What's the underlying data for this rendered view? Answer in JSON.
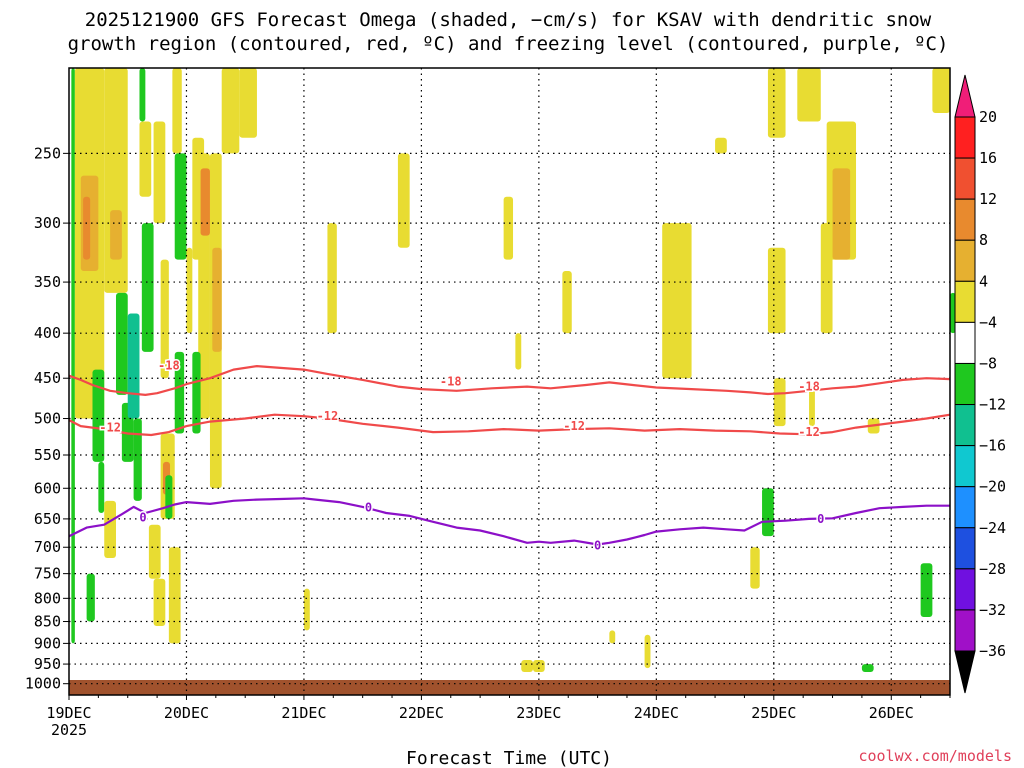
{
  "chart_data": {
    "type": "heatmap",
    "title": "2025121900 GFS Forecast Omega (shaded, −cm/s) for KSAV with dendritic snow",
    "subtitle": "growth region (contoured, red, ºC) and freezing level (contoured, purple, ºC)",
    "xlabel": "Forecast Time (UTC)",
    "ylabel": "",
    "credit": "coolwx.com/models",
    "x_ticks": [
      {
        "day": 0,
        "label": "19DEC",
        "sub": "2025"
      },
      {
        "day": 1,
        "label": "20DEC",
        "sub": ""
      },
      {
        "day": 2,
        "label": "21DEC",
        "sub": ""
      },
      {
        "day": 3,
        "label": "22DEC",
        "sub": ""
      },
      {
        "day": 4,
        "label": "23DEC",
        "sub": ""
      },
      {
        "day": 5,
        "label": "24DEC",
        "sub": ""
      },
      {
        "day": 6,
        "label": "25DEC",
        "sub": ""
      },
      {
        "day": 7,
        "label": "26DEC",
        "sub": ""
      }
    ],
    "x_range_days": [
      0,
      7.5
    ],
    "y_ticks_hpa": [
      250,
      300,
      350,
      400,
      450,
      500,
      550,
      600,
      650,
      700,
      750,
      800,
      850,
      900,
      950,
      1000
    ],
    "y_range_hpa": [
      200,
      1030
    ],
    "y_scale": "log-pressure",
    "grid": true,
    "colorbar": {
      "levels": [
        "20",
        "16",
        "12",
        "8",
        "4",
        "−4",
        "−8",
        "−12",
        "−16",
        "−20",
        "−24",
        "−28",
        "−32",
        "−36"
      ],
      "colors": [
        "#ff2020",
        "#f05030",
        "#e88a2e",
        "#e6b030",
        "#e8dc32",
        "#ffffff",
        "#1fc81f",
        "#10c090",
        "#10c8d0",
        "#1e90ff",
        "#1e50e0",
        "#7010e0",
        "#a010c8",
        "#a0a0a0"
      ],
      "top_color": "#f01e78",
      "bottom_color": "#000000"
    },
    "contours": [
      {
        "name": "-18",
        "color": "#f04a4a",
        "points": [
          [
            0,
            447
          ],
          [
            0.1,
            452
          ],
          [
            0.2,
            458
          ],
          [
            0.35,
            465
          ],
          [
            0.5,
            468
          ],
          [
            0.65,
            470
          ],
          [
            0.75,
            468
          ],
          [
            0.9,
            462
          ],
          [
            1.0,
            457
          ],
          [
            1.2,
            450
          ],
          [
            1.4,
            440
          ],
          [
            1.6,
            436
          ],
          [
            1.8,
            438
          ],
          [
            2.0,
            440
          ],
          [
            2.2,
            445
          ],
          [
            2.5,
            452
          ],
          [
            2.8,
            460
          ],
          [
            3.0,
            463
          ],
          [
            3.3,
            465
          ],
          [
            3.6,
            462
          ],
          [
            3.9,
            460
          ],
          [
            4.1,
            462
          ],
          [
            4.4,
            458
          ],
          [
            4.6,
            455
          ],
          [
            4.8,
            458
          ],
          [
            5.0,
            461
          ],
          [
            5.3,
            463
          ],
          [
            5.6,
            465
          ],
          [
            5.8,
            467
          ],
          [
            5.95,
            469
          ],
          [
            6.1,
            468
          ],
          [
            6.3,
            465
          ],
          [
            6.5,
            462
          ],
          [
            6.7,
            460
          ],
          [
            6.9,
            456
          ],
          [
            7.1,
            452
          ],
          [
            7.3,
            450
          ],
          [
            7.5,
            451
          ]
        ],
        "labels": [
          [
            0.85,
            435
          ],
          [
            3.25,
            454
          ],
          [
            6.3,
            460
          ]
        ]
      },
      {
        "name": "-12",
        "color": "#f04a4a",
        "points": [
          [
            0,
            502
          ],
          [
            0.1,
            510
          ],
          [
            0.3,
            514
          ],
          [
            0.5,
            520
          ],
          [
            0.7,
            522
          ],
          [
            0.85,
            518
          ],
          [
            1.0,
            510
          ],
          [
            1.2,
            504
          ],
          [
            1.5,
            500
          ],
          [
            1.75,
            495
          ],
          [
            2.0,
            497
          ],
          [
            2.2,
            500
          ],
          [
            2.5,
            507
          ],
          [
            2.8,
            512
          ],
          [
            3.1,
            518
          ],
          [
            3.4,
            517
          ],
          [
            3.7,
            514
          ],
          [
            4.0,
            516
          ],
          [
            4.3,
            514
          ],
          [
            4.6,
            513
          ],
          [
            4.9,
            516
          ],
          [
            5.2,
            514
          ],
          [
            5.5,
            516
          ],
          [
            5.8,
            517
          ],
          [
            6.05,
            520
          ],
          [
            6.3,
            521
          ],
          [
            6.5,
            518
          ],
          [
            6.7,
            512
          ],
          [
            6.9,
            508
          ],
          [
            7.1,
            504
          ],
          [
            7.3,
            500
          ],
          [
            7.5,
            495
          ]
        ],
        "labels": [
          [
            0.35,
            512
          ],
          [
            2.2,
            497
          ],
          [
            4.3,
            510
          ],
          [
            6.3,
            518
          ]
        ]
      },
      {
        "name": "0",
        "color": "#8c10c8",
        "points": [
          [
            0,
            680
          ],
          [
            0.15,
            665
          ],
          [
            0.3,
            660
          ],
          [
            0.45,
            642
          ],
          [
            0.55,
            630
          ],
          [
            0.65,
            640
          ],
          [
            0.8,
            632
          ],
          [
            0.9,
            626
          ],
          [
            1.0,
            622
          ],
          [
            1.2,
            625
          ],
          [
            1.4,
            620
          ],
          [
            1.6,
            618
          ],
          [
            1.8,
            617
          ],
          [
            2.0,
            616
          ],
          [
            2.1,
            618
          ],
          [
            2.3,
            622
          ],
          [
            2.5,
            630
          ],
          [
            2.7,
            640
          ],
          [
            2.9,
            645
          ],
          [
            3.1,
            655
          ],
          [
            3.3,
            665
          ],
          [
            3.5,
            670
          ],
          [
            3.7,
            680
          ],
          [
            3.9,
            692
          ],
          [
            4.0,
            690
          ],
          [
            4.1,
            692
          ],
          [
            4.3,
            688
          ],
          [
            4.5,
            695
          ],
          [
            4.6,
            692
          ],
          [
            4.75,
            686
          ],
          [
            4.9,
            678
          ],
          [
            5.0,
            672
          ],
          [
            5.2,
            668
          ],
          [
            5.4,
            665
          ],
          [
            5.6,
            668
          ],
          [
            5.75,
            670
          ],
          [
            5.9,
            655
          ],
          [
            6.1,
            653
          ],
          [
            6.3,
            650
          ],
          [
            6.5,
            649
          ],
          [
            6.7,
            640
          ],
          [
            6.9,
            632
          ],
          [
            7.1,
            630
          ],
          [
            7.3,
            628
          ],
          [
            7.5,
            628
          ]
        ],
        "labels": [
          [
            0.63,
            648
          ],
          [
            2.55,
            631
          ],
          [
            4.5,
            697
          ],
          [
            6.4,
            650
          ]
        ]
      }
    ],
    "shaded_cells": [
      {
        "day0": 0.02,
        "day1": 0.05,
        "p0": 200,
        "p1": 900,
        "value": -6
      },
      {
        "day0": 0.05,
        "day1": 0.3,
        "p0": 200,
        "p1": 500,
        "value": 6
      },
      {
        "day0": 0.1,
        "day1": 0.25,
        "p0": 265,
        "p1": 340,
        "value": 10
      },
      {
        "day0": 0.12,
        "day1": 0.18,
        "p0": 280,
        "p1": 330,
        "value": 14
      },
      {
        "day0": 0.3,
        "day1": 0.5,
        "p0": 200,
        "p1": 360,
        "value": 6
      },
      {
        "day0": 0.35,
        "day1": 0.45,
        "p0": 290,
        "p1": 330,
        "value": 10
      },
      {
        "day0": 0.2,
        "day1": 0.3,
        "p0": 440,
        "p1": 560,
        "value": -6
      },
      {
        "day0": 0.25,
        "day1": 0.3,
        "p0": 560,
        "p1": 640,
        "value": -6
      },
      {
        "day0": 0.15,
        "day1": 0.22,
        "p0": 750,
        "p1": 850,
        "value": -6
      },
      {
        "day0": 0.4,
        "day1": 0.5,
        "p0": 360,
        "p1": 470,
        "value": -6
      },
      {
        "day0": 0.45,
        "day1": 0.55,
        "p0": 480,
        "p1": 560,
        "value": -6
      },
      {
        "day0": 0.5,
        "day1": 0.6,
        "p0": 380,
        "p1": 500,
        "value": -10
      },
      {
        "day0": 0.55,
        "day1": 0.62,
        "p0": 500,
        "p1": 620,
        "value": -6
      },
      {
        "day0": 0.6,
        "day1": 0.7,
        "p0": 230,
        "p1": 280,
        "value": 6
      },
      {
        "day0": 0.62,
        "day1": 0.72,
        "p0": 300,
        "p1": 420,
        "value": -6
      },
      {
        "day0": 0.72,
        "day1": 0.82,
        "p0": 230,
        "p1": 300,
        "value": 6
      },
      {
        "day0": 0.78,
        "day1": 0.85,
        "p0": 330,
        "p1": 450,
        "value": 6
      },
      {
        "day0": 0.68,
        "day1": 0.78,
        "p0": 660,
        "p1": 760,
        "value": 6
      },
      {
        "day0": 0.72,
        "day1": 0.82,
        "p0": 760,
        "p1": 860,
        "value": 6
      },
      {
        "day0": 0.78,
        "day1": 0.9,
        "p0": 520,
        "p1": 650,
        "value": 6
      },
      {
        "day0": 0.8,
        "day1": 0.86,
        "p0": 560,
        "p1": 610,
        "value": 14
      },
      {
        "day0": 0.88,
        "day1": 0.96,
        "p0": 200,
        "p1": 250,
        "value": 6
      },
      {
        "day0": 0.9,
        "day1": 0.98,
        "p0": 420,
        "p1": 520,
        "value": -6
      },
      {
        "day0": 0.85,
        "day1": 0.95,
        "p0": 700,
        "p1": 900,
        "value": 6
      },
      {
        "day0": 0.9,
        "day1": 1.0,
        "p0": 250,
        "p1": 330,
        "value": -6
      },
      {
        "day0": 1.0,
        "day1": 1.05,
        "p0": 320,
        "p1": 400,
        "value": 6
      },
      {
        "day0": 1.05,
        "day1": 1.15,
        "p0": 240,
        "p1": 330,
        "value": 6
      },
      {
        "day0": 1.1,
        "day1": 1.2,
        "p0": 250,
        "p1": 500,
        "value": 6
      },
      {
        "day0": 1.12,
        "day1": 1.2,
        "p0": 260,
        "p1": 310,
        "value": 14
      },
      {
        "day0": 1.2,
        "day1": 1.3,
        "p0": 250,
        "p1": 600,
        "value": 6
      },
      {
        "day0": 1.22,
        "day1": 1.3,
        "p0": 320,
        "p1": 420,
        "value": 10
      },
      {
        "day0": 1.05,
        "day1": 1.12,
        "p0": 420,
        "p1": 520,
        "value": -6
      },
      {
        "day0": 1.3,
        "day1": 1.45,
        "p0": 200,
        "p1": 250,
        "value": 6
      },
      {
        "day0": 1.45,
        "day1": 1.6,
        "p0": 200,
        "p1": 240,
        "value": 6
      },
      {
        "day0": 0.82,
        "day1": 0.88,
        "p0": 580,
        "p1": 650,
        "value": -6
      },
      {
        "day0": 0.6,
        "day1": 0.65,
        "p0": 200,
        "p1": 230,
        "value": -6
      },
      {
        "day0": 0.3,
        "day1": 0.4,
        "p0": 620,
        "p1": 720,
        "value": 6
      },
      {
        "day0": 2.0,
        "day1": 2.05,
        "p0": 780,
        "p1": 870,
        "value": 6
      },
      {
        "day0": 2.2,
        "day1": 2.28,
        "p0": 300,
        "p1": 400,
        "value": 6
      },
      {
        "day0": 2.8,
        "day1": 2.9,
        "p0": 250,
        "p1": 320,
        "value": 6
      },
      {
        "day0": 3.8,
        "day1": 3.85,
        "p0": 400,
        "p1": 440,
        "value": 6
      },
      {
        "day0": 3.7,
        "day1": 3.78,
        "p0": 280,
        "p1": 330,
        "value": 6
      },
      {
        "day0": 4.2,
        "day1": 4.28,
        "p0": 340,
        "p1": 400,
        "value": 6
      },
      {
        "day0": 5.05,
        "day1": 5.3,
        "p0": 300,
        "p1": 450,
        "value": 6
      },
      {
        "day0": 6.0,
        "day1": 6.1,
        "p0": 450,
        "p1": 510,
        "value": 6
      },
      {
        "day0": 5.8,
        "day1": 5.88,
        "p0": 700,
        "p1": 780,
        "value": 6
      },
      {
        "day0": 5.9,
        "day1": 6.0,
        "p0": 600,
        "p1": 680,
        "value": -6
      },
      {
        "day0": 5.95,
        "day1": 6.1,
        "p0": 200,
        "p1": 240,
        "value": 6
      },
      {
        "day0": 6.2,
        "day1": 6.4,
        "p0": 200,
        "p1": 230,
        "value": 6
      },
      {
        "day0": 6.45,
        "day1": 6.7,
        "p0": 230,
        "p1": 330,
        "value": 6
      },
      {
        "day0": 6.5,
        "day1": 6.65,
        "p0": 260,
        "p1": 330,
        "value": 10
      },
      {
        "day0": 5.95,
        "day1": 6.1,
        "p0": 320,
        "p1": 400,
        "value": 6
      },
      {
        "day0": 6.4,
        "day1": 6.5,
        "p0": 300,
        "p1": 400,
        "value": 6
      },
      {
        "day0": 7.35,
        "day1": 7.5,
        "p0": 200,
        "p1": 225,
        "value": 6
      },
      {
        "day0": 7.5,
        "day1": 7.55,
        "p0": 360,
        "p1": 400,
        "value": -6
      },
      {
        "day0": 7.25,
        "day1": 7.35,
        "p0": 730,
        "p1": 840,
        "value": -6
      },
      {
        "day0": 6.8,
        "day1": 6.9,
        "p0": 500,
        "p1": 520,
        "value": 6
      },
      {
        "day0": 6.3,
        "day1": 6.35,
        "p0": 460,
        "p1": 510,
        "value": 6
      },
      {
        "day0": 5.5,
        "day1": 5.6,
        "p0": 240,
        "p1": 250,
        "value": 6
      },
      {
        "day0": 4.6,
        "day1": 4.65,
        "p0": 870,
        "p1": 900,
        "value": 6
      },
      {
        "day0": 3.85,
        "day1": 3.95,
        "p0": 940,
        "p1": 970,
        "value": 6
      },
      {
        "day0": 3.95,
        "day1": 4.05,
        "p0": 940,
        "p1": 970,
        "value": 6
      },
      {
        "day0": 4.9,
        "day1": 4.95,
        "p0": 880,
        "p1": 960,
        "value": 6
      },
      {
        "day0": 6.75,
        "day1": 6.85,
        "p0": 950,
        "p1": 970,
        "value": -6
      }
    ]
  }
}
